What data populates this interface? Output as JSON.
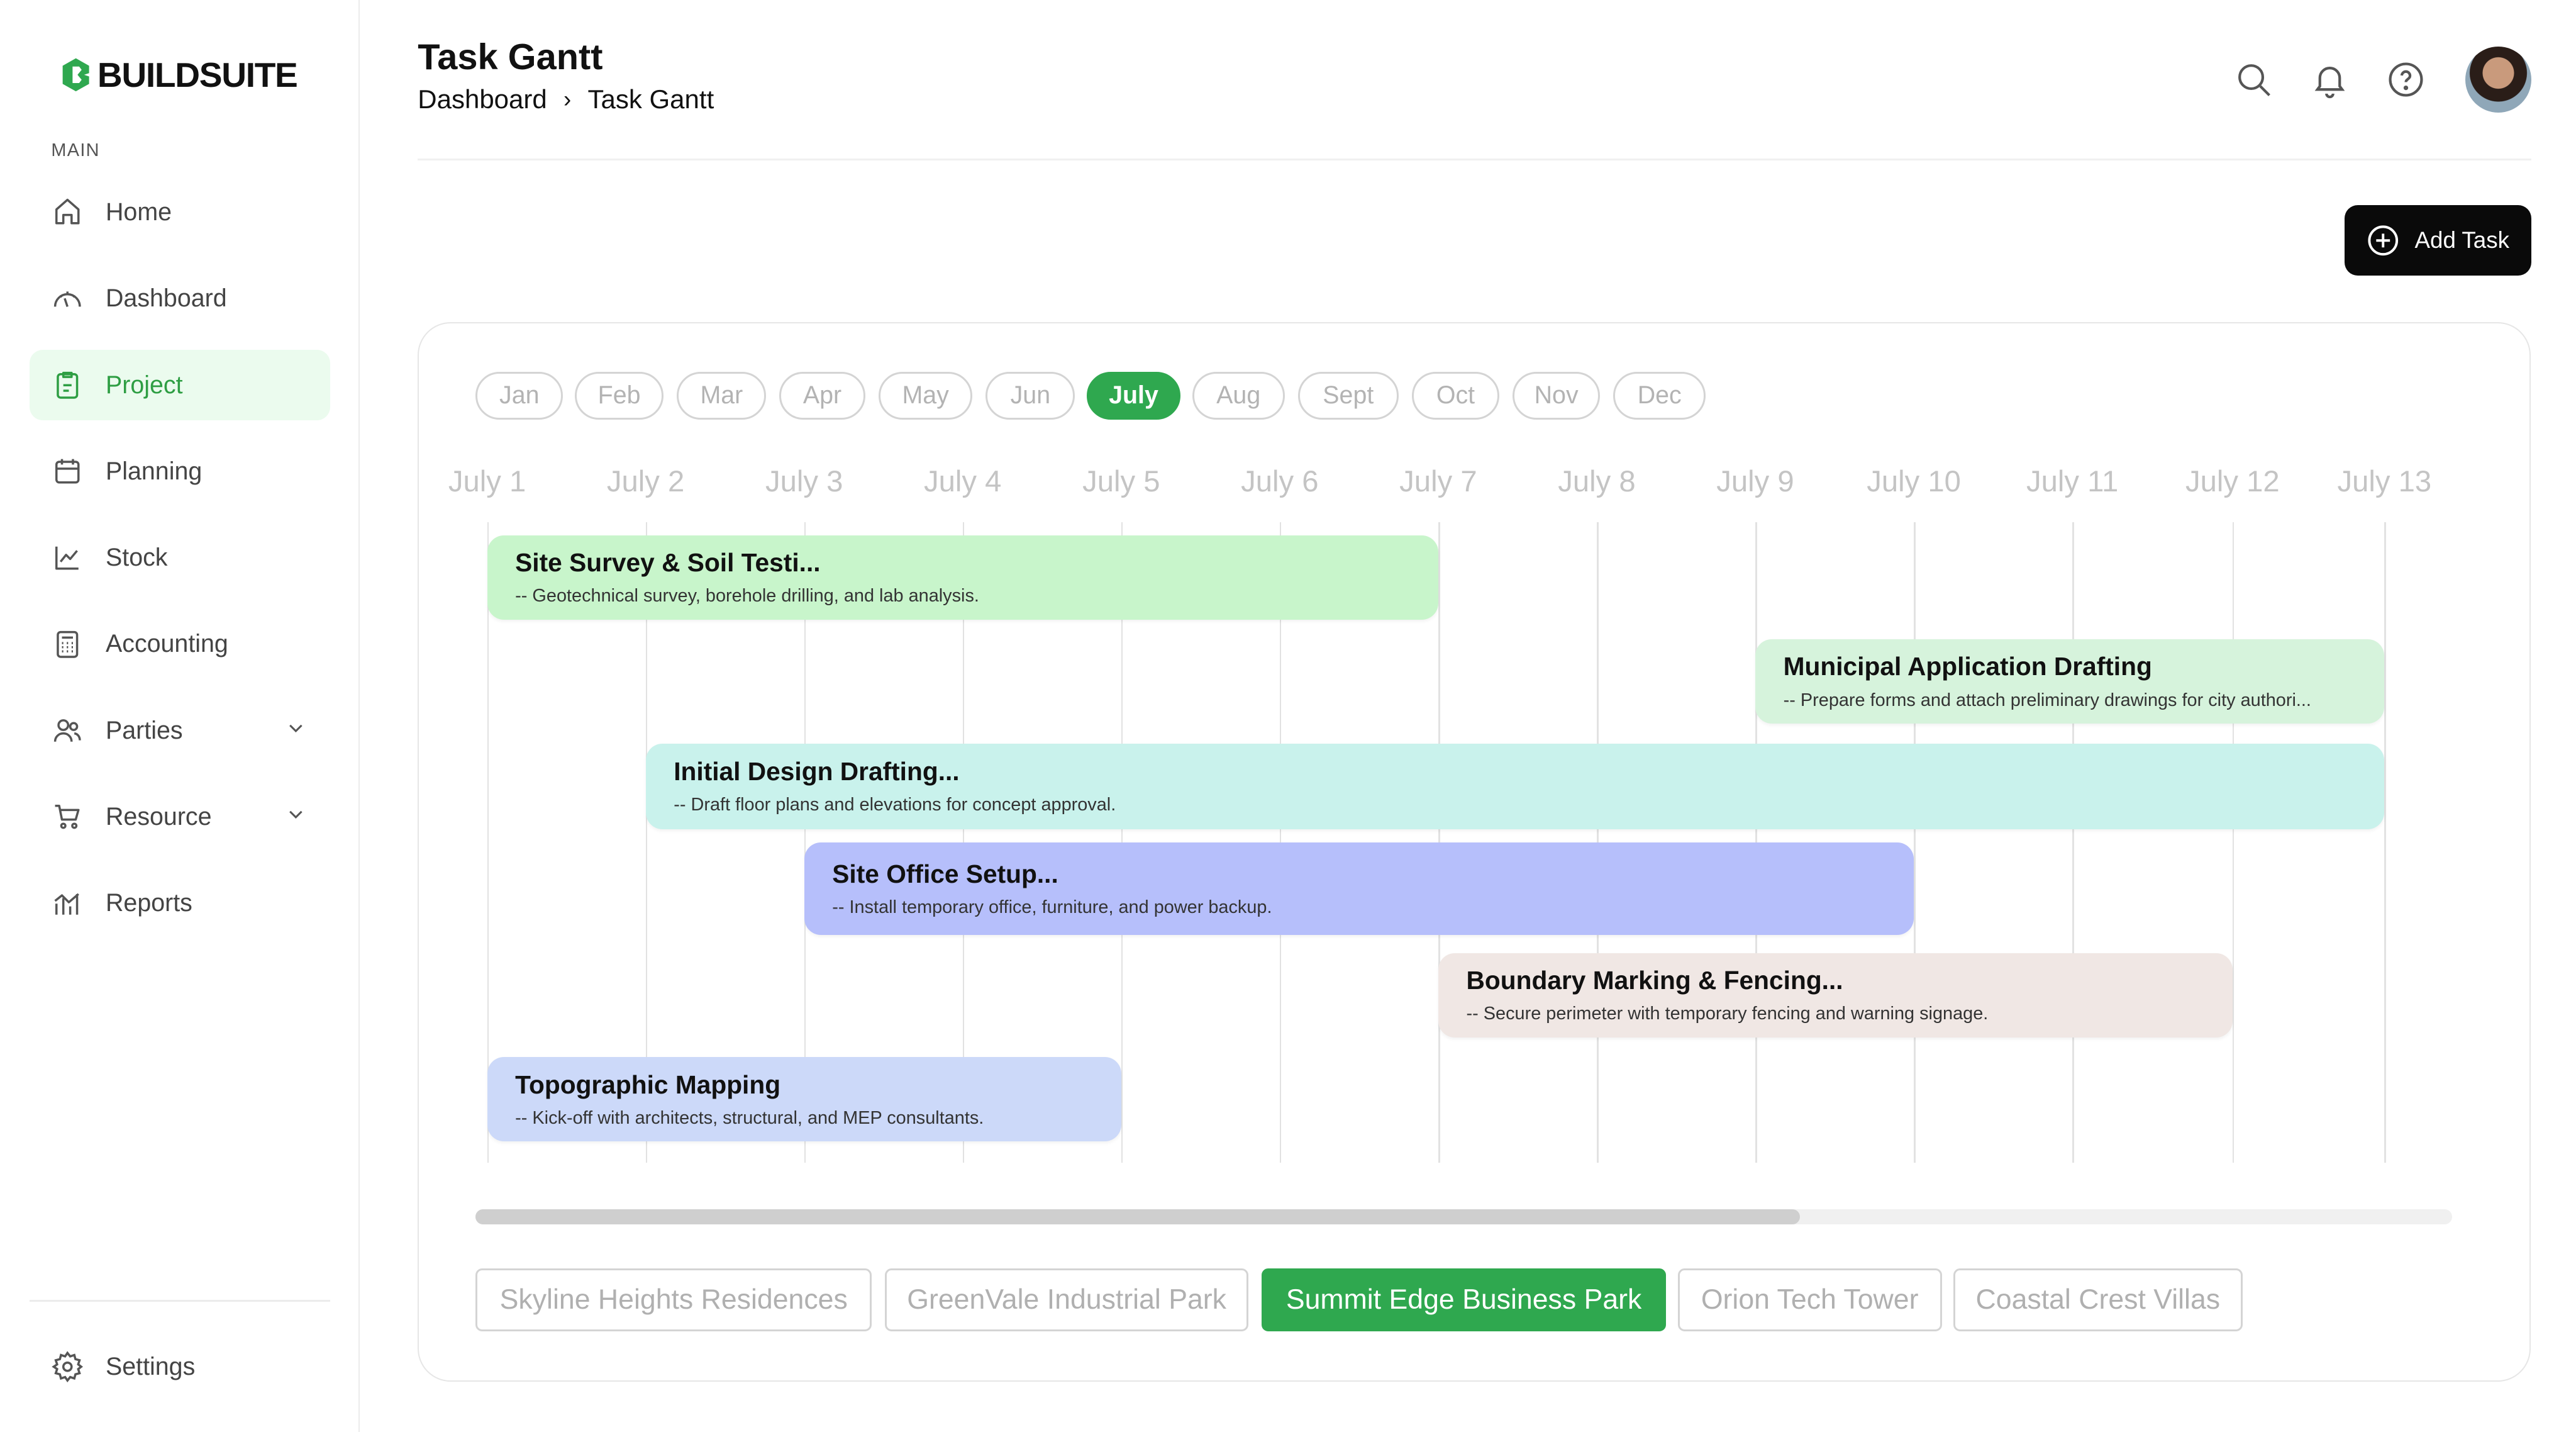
{
  "brand": {
    "name": "BUILDSUITE",
    "color": "#2fa84f"
  },
  "sidebar": {
    "section_label": "MAIN",
    "items": [
      {
        "label": "Home",
        "icon": "home-icon"
      },
      {
        "label": "Dashboard",
        "icon": "gauge-icon"
      },
      {
        "label": "Project",
        "icon": "clipboard-icon",
        "active": true
      },
      {
        "label": "Planning",
        "icon": "calendar-icon"
      },
      {
        "label": "Stock",
        "icon": "chart-line-icon"
      },
      {
        "label": "Accounting",
        "icon": "calculator-icon"
      },
      {
        "label": "Parties",
        "icon": "users-icon",
        "expandable": true
      },
      {
        "label": "Resource",
        "icon": "cart-icon",
        "expandable": true
      },
      {
        "label": "Reports",
        "icon": "bar-chart-icon"
      }
    ],
    "settings": {
      "label": "Settings",
      "icon": "gear-icon"
    }
  },
  "header": {
    "title": "Task Gantt",
    "breadcrumb": [
      "Dashboard",
      "Task Gantt"
    ]
  },
  "toolbar": {
    "add_task_label": "Add Task"
  },
  "gantt": {
    "months": [
      "Jan",
      "Feb",
      "Mar",
      "Apr",
      "May",
      "Jun",
      "July",
      "Aug",
      "Sept",
      "Oct",
      "Nov",
      "Dec"
    ],
    "active_month": "July",
    "days": [
      "July 1",
      "July 2",
      "July 3",
      "July 4",
      "July 5",
      "July 6",
      "July 7",
      "July 8",
      "July 9",
      "July 10",
      "July 11",
      "July 12",
      "July 13"
    ],
    "tasks": [
      {
        "title": "Site Survey & Soil Testi...",
        "desc": "-- Geotechnical survey, borehole drilling, and lab analysis.",
        "start": "July 1",
        "end": "July 7",
        "color": "#c8f5cb"
      },
      {
        "title": "Municipal Application Drafting",
        "desc": "-- Prepare forms and attach preliminary drawings for city authori...",
        "start": "July 9",
        "end": "July 13",
        "color": "#d6f3dc"
      },
      {
        "title": "Initial Design Drafting...",
        "desc": "-- Draft floor plans and elevations for concept approval.",
        "start": "July 2",
        "end": "July 13",
        "color": "#c9f2ec"
      },
      {
        "title": "Site Office Setup...",
        "desc": "-- Install temporary office, furniture, and power backup.",
        "start": "July 3",
        "end": "July 10",
        "color": "#b6bffb"
      },
      {
        "title": "Boundary Marking & Fencing...",
        "desc": "-- Secure perimeter with temporary fencing and warning signage.",
        "start": "July 7",
        "end": "July 12",
        "color": "#f0e7e4"
      },
      {
        "title": "Topographic Mapping",
        "desc": "-- Kick-off with architects, structural, and MEP consultants.",
        "start": "July 1",
        "end": "July 5",
        "color": "#ccd9f9"
      }
    ],
    "scroll_position": 0.67
  },
  "projects": {
    "items": [
      "Skyline Heights Residences",
      "GreenVale Industrial Park",
      "Summit Edge Business Park",
      "Orion Tech Tower",
      "Coastal Crest Villas"
    ],
    "active": "Summit Edge Business Park"
  }
}
